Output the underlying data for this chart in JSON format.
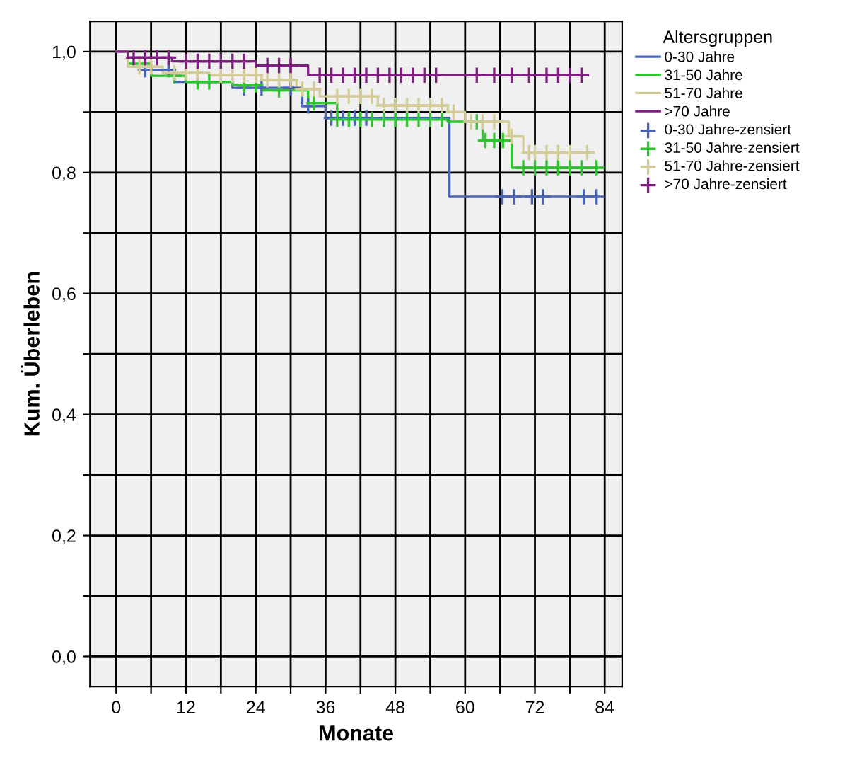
{
  "chart_data": {
    "type": "step",
    "xlabel": "Monate",
    "ylabel": "Kum. Überleben",
    "legend_title": "Altersgruppen",
    "legend": "right",
    "grid": true,
    "xlim": [
      -4.5,
      87
    ],
    "ylim": [
      -0.05,
      1.05
    ],
    "xticks": [
      0,
      {
        "value": 6,
        "label": null
      },
      12,
      {
        "value": 18,
        "label": null
      },
      24,
      {
        "value": 30,
        "label": null
      },
      36,
      {
        "value": 42,
        "label": null
      },
      48,
      {
        "value": 54,
        "label": null
      },
      60,
      {
        "value": 66,
        "label": null
      },
      72,
      {
        "value": 78,
        "label": null
      },
      84
    ],
    "yticks": [
      {
        "value": 0.0,
        "label": "0,0"
      },
      {
        "value": 0.1,
        "label": null
      },
      {
        "value": 0.2,
        "label": "0,2"
      },
      {
        "value": 0.3,
        "label": null
      },
      {
        "value": 0.4,
        "label": "0,4"
      },
      {
        "value": 0.5,
        "label": null
      },
      {
        "value": 0.6,
        "label": "0,6"
      },
      {
        "value": 0.7,
        "label": null
      },
      {
        "value": 0.8,
        "label": "0,8"
      },
      {
        "value": 0.9,
        "label": null
      },
      {
        "value": 1.0,
        "label": "1,0"
      }
    ],
    "series": [
      {
        "name": "0-30 Jahre",
        "color": "#4a64b4",
        "x": [
          0,
          2,
          5,
          10,
          20,
          32,
          36,
          57.3,
          82.6
        ],
        "values": [
          1.0,
          0.99,
          0.97,
          0.95,
          0.94,
          0.91,
          0.89,
          0.76,
          0.76
        ]
      },
      {
        "name": "31-50 Jahre",
        "color": "#2ec42e",
        "x": [
          0,
          2,
          6,
          12,
          20,
          25,
          33,
          38,
          57,
          63,
          68,
          82.6
        ],
        "values": [
          1.0,
          0.98,
          0.96,
          0.95,
          0.945,
          0.936,
          0.915,
          0.888,
          0.884,
          0.853,
          0.808,
          0.808
        ]
      },
      {
        "name": "51-70 Jahre",
        "color": "#d4cc98",
        "x": [
          0,
          2,
          8,
          16,
          25,
          31,
          35,
          45,
          57,
          60,
          67.5,
          70,
          81
        ],
        "values": [
          1.0,
          0.975,
          0.965,
          0.961,
          0.953,
          0.938,
          0.926,
          0.911,
          0.9,
          0.884,
          0.86,
          0.833,
          0.833
        ]
      },
      {
        "name": ">70 Jahre",
        "color": "#7e1e7e",
        "x": [
          0,
          2,
          9.6,
          24,
          33,
          81
        ],
        "values": [
          1.0,
          0.99,
          0.984,
          0.977,
          0.961,
          0.961
        ]
      },
      {
        "name": "0-30 Jahre-zensiert",
        "type": "scatter",
        "marker": "cross",
        "color": "#4a64b4",
        "x": [
          5,
          9,
          22,
          25,
          30,
          33,
          37,
          39,
          41,
          43,
          66.4,
          68.4,
          71.5,
          73.4,
          80.4,
          82.6
        ],
        "values": [
          0.97,
          0.97,
          0.94,
          0.94,
          0.94,
          0.91,
          0.89,
          0.89,
          0.89,
          0.89,
          0.76,
          0.76,
          0.76,
          0.76,
          0.76,
          0.76
        ]
      },
      {
        "name": "31-50 Jahre-zensiert",
        "type": "scatter",
        "marker": "cross",
        "color": "#2ec42e",
        "x": [
          10,
          14,
          16,
          22,
          24,
          28,
          34,
          38,
          40,
          42,
          44,
          46,
          48,
          50,
          52,
          54,
          56,
          62,
          63.5,
          65,
          66.5,
          70,
          72,
          74,
          76,
          78,
          80,
          82.6
        ],
        "values": [
          0.96,
          0.95,
          0.95,
          0.945,
          0.945,
          0.936,
          0.915,
          0.888,
          0.888,
          0.888,
          0.888,
          0.888,
          0.888,
          0.888,
          0.888,
          0.888,
          0.888,
          0.884,
          0.853,
          0.853,
          0.853,
          0.808,
          0.808,
          0.808,
          0.808,
          0.808,
          0.808,
          0.808
        ]
      },
      {
        "name": "51-70 Jahre-zensiert",
        "type": "scatter",
        "marker": "cross",
        "color": "#d4cc98",
        "x": [
          4,
          6,
          10,
          12,
          14,
          18,
          20,
          22,
          24,
          26,
          28,
          30,
          32,
          34,
          38,
          40,
          42,
          44,
          46,
          48,
          50,
          52,
          54,
          56,
          58,
          61,
          63,
          65,
          68,
          71,
          72,
          74,
          76,
          78,
          81
        ],
        "values": [
          0.975,
          0.975,
          0.965,
          0.965,
          0.965,
          0.961,
          0.961,
          0.961,
          0.961,
          0.953,
          0.953,
          0.953,
          0.938,
          0.938,
          0.926,
          0.926,
          0.926,
          0.926,
          0.911,
          0.911,
          0.911,
          0.911,
          0.911,
          0.911,
          0.9,
          0.884,
          0.884,
          0.884,
          0.86,
          0.833,
          0.833,
          0.833,
          0.833,
          0.833,
          0.833
        ]
      },
      {
        "name": ">70 Jahre-zensiert",
        "type": "scatter",
        "marker": "cross",
        "color": "#7e1e7e",
        "x": [
          3,
          5,
          7,
          9,
          12,
          14,
          16,
          18,
          20,
          22,
          26,
          28,
          30,
          35,
          37,
          39,
          41,
          43,
          45,
          47,
          49,
          51,
          53,
          55,
          62,
          65,
          68,
          71,
          74,
          76,
          78,
          80
        ],
        "values": [
          0.99,
          0.99,
          0.99,
          0.99,
          0.984,
          0.984,
          0.984,
          0.984,
          0.984,
          0.984,
          0.977,
          0.977,
          0.977,
          0.961,
          0.961,
          0.961,
          0.961,
          0.961,
          0.961,
          0.961,
          0.961,
          0.961,
          0.961,
          0.961,
          0.961,
          0.961,
          0.961,
          0.961,
          0.961,
          0.961,
          0.961,
          0.961
        ]
      }
    ]
  }
}
